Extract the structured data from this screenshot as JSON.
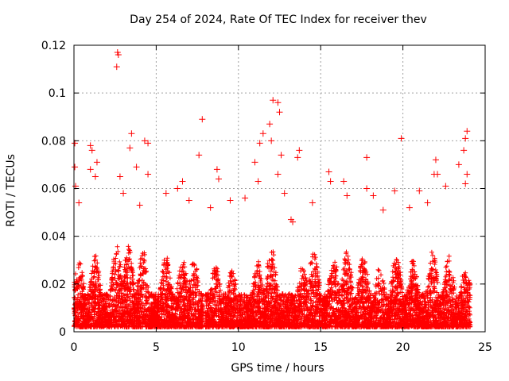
{
  "chart_data": {
    "type": "scatter",
    "title": "Day 254 of 2024, Rate Of TEC Index for receiver thev",
    "xlabel": "GPS time / hours",
    "ylabel": "ROTI / TECUs",
    "xlim": [
      0,
      25
    ],
    "ylim": [
      0,
      0.12
    ],
    "xticks": [
      0,
      5,
      10,
      15,
      20,
      25
    ],
    "xtick_labels": [
      "0",
      "5",
      "10",
      "15",
      "20",
      "25"
    ],
    "yticks": [
      0,
      0.02,
      0.04,
      0.06,
      0.08,
      0.1,
      0.12
    ],
    "ytick_labels": [
      "0",
      "0.02",
      "0.04",
      "0.06",
      "0.08",
      "0.1",
      "0.12"
    ],
    "grid": true,
    "marker": "+",
    "color": "#ff0000",
    "series": [
      {
        "name": "ROTI",
        "points": [
          [
            2.65,
            0.117
          ],
          [
            2.7,
            0.116
          ],
          [
            2.6,
            0.111
          ],
          [
            12.1,
            0.097
          ],
          [
            12.4,
            0.096
          ],
          [
            11.9,
            0.087
          ],
          [
            12.5,
            0.092
          ],
          [
            7.8,
            0.089
          ],
          [
            23.9,
            0.084
          ],
          [
            11.5,
            0.083
          ],
          [
            3.5,
            0.083
          ],
          [
            19.9,
            0.081
          ],
          [
            4.3,
            0.08
          ],
          [
            4.5,
            0.079
          ],
          [
            12.0,
            0.08
          ],
          [
            11.3,
            0.079
          ],
          [
            0.05,
            0.079
          ],
          [
            23.8,
            0.081
          ],
          [
            1.0,
            0.078
          ],
          [
            1.1,
            0.076
          ],
          [
            3.4,
            0.077
          ],
          [
            7.6,
            0.074
          ],
          [
            23.7,
            0.076
          ],
          [
            17.8,
            0.073
          ],
          [
            13.7,
            0.076
          ],
          [
            13.6,
            0.073
          ],
          [
            22.0,
            0.072
          ],
          [
            12.6,
            0.074
          ],
          [
            1.4,
            0.071
          ],
          [
            23.4,
            0.07
          ],
          [
            3.8,
            0.069
          ],
          [
            11.0,
            0.071
          ],
          [
            8.7,
            0.068
          ],
          [
            1.0,
            0.068
          ],
          [
            0.05,
            0.069
          ],
          [
            15.5,
            0.067
          ],
          [
            22.1,
            0.066
          ],
          [
            21.9,
            0.066
          ],
          [
            23.9,
            0.066
          ],
          [
            4.5,
            0.066
          ],
          [
            12.4,
            0.066
          ],
          [
            2.8,
            0.065
          ],
          [
            1.3,
            0.065
          ],
          [
            16.4,
            0.063
          ],
          [
            6.6,
            0.063
          ],
          [
            8.8,
            0.064
          ],
          [
            11.2,
            0.063
          ],
          [
            15.6,
            0.063
          ],
          [
            0.1,
            0.061
          ],
          [
            17.8,
            0.06
          ],
          [
            18.2,
            0.057
          ],
          [
            21.0,
            0.059
          ],
          [
            22.6,
            0.061
          ],
          [
            23.8,
            0.062
          ],
          [
            16.6,
            0.057
          ],
          [
            19.5,
            0.059
          ],
          [
            10.4,
            0.056
          ],
          [
            6.3,
            0.06
          ],
          [
            3.0,
            0.058
          ],
          [
            5.6,
            0.058
          ],
          [
            12.8,
            0.058
          ],
          [
            13.2,
            0.047
          ],
          [
            13.3,
            0.046
          ],
          [
            0.3,
            0.054
          ],
          [
            7.0,
            0.055
          ],
          [
            9.5,
            0.055
          ],
          [
            14.5,
            0.054
          ],
          [
            21.5,
            0.054
          ],
          [
            20.4,
            0.052
          ],
          [
            18.8,
            0.051
          ],
          [
            4.0,
            0.053
          ],
          [
            8.3,
            0.052
          ]
        ]
      }
    ]
  }
}
